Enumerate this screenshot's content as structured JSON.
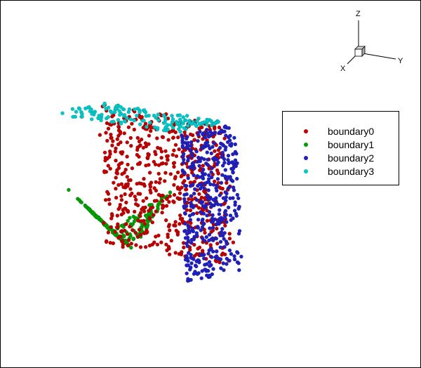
{
  "chart_data": {
    "type": "scatter",
    "projection": "3d",
    "title": "",
    "axis_triad": {
      "x_label": "X",
      "y_label": "Y",
      "z_label": "Z"
    },
    "legend_placement": "right",
    "series": [
      {
        "name": "boundary0",
        "color": "#c00000",
        "face": "x = 0",
        "point_count": 600
      },
      {
        "name": "boundary1",
        "color": "#00a000",
        "face": "z = 0",
        "point_count": 190
      },
      {
        "name": "boundary2",
        "color": "#2020c0",
        "face": "y = 1",
        "point_count": 400
      },
      {
        "name": "boundary3",
        "color": "#00c8c8",
        "face": "z = 1",
        "point_count": 150
      }
    ]
  }
}
